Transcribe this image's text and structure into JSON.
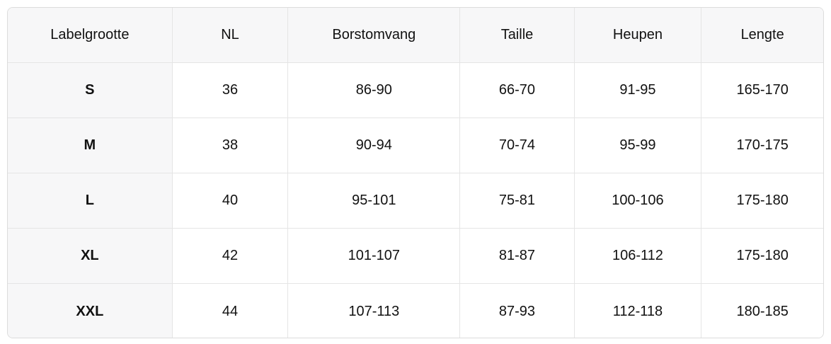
{
  "colors": {
    "page_background": "#ffffff",
    "header_background": "#f7f7f8",
    "first_column_background": "#f7f7f8",
    "cell_background": "#ffffff",
    "border": "#e5e5e5",
    "outer_border": "#dcdcdc",
    "text": "#111111"
  },
  "size_chart": {
    "columns": [
      {
        "key": "label",
        "label": "Labelgrootte"
      },
      {
        "key": "nl",
        "label": "NL"
      },
      {
        "key": "chest",
        "label": "Borstomvang"
      },
      {
        "key": "waist",
        "label": "Taille"
      },
      {
        "key": "hips",
        "label": "Heupen"
      },
      {
        "key": "length",
        "label": "Lengte"
      }
    ],
    "rows": [
      [
        "S",
        "36",
        "86-90",
        "66-70",
        "91-95",
        "165-170"
      ],
      [
        "M",
        "38",
        "90-94",
        "70-74",
        "95-99",
        "170-175"
      ],
      [
        "L",
        "40",
        "95-101",
        "75-81",
        "100-106",
        "175-180"
      ],
      [
        "XL",
        "42",
        "101-107",
        "81-87",
        "106-112",
        "175-180"
      ],
      [
        "XXL",
        "44",
        "107-113",
        "87-93",
        "112-118",
        "180-185"
      ]
    ]
  }
}
